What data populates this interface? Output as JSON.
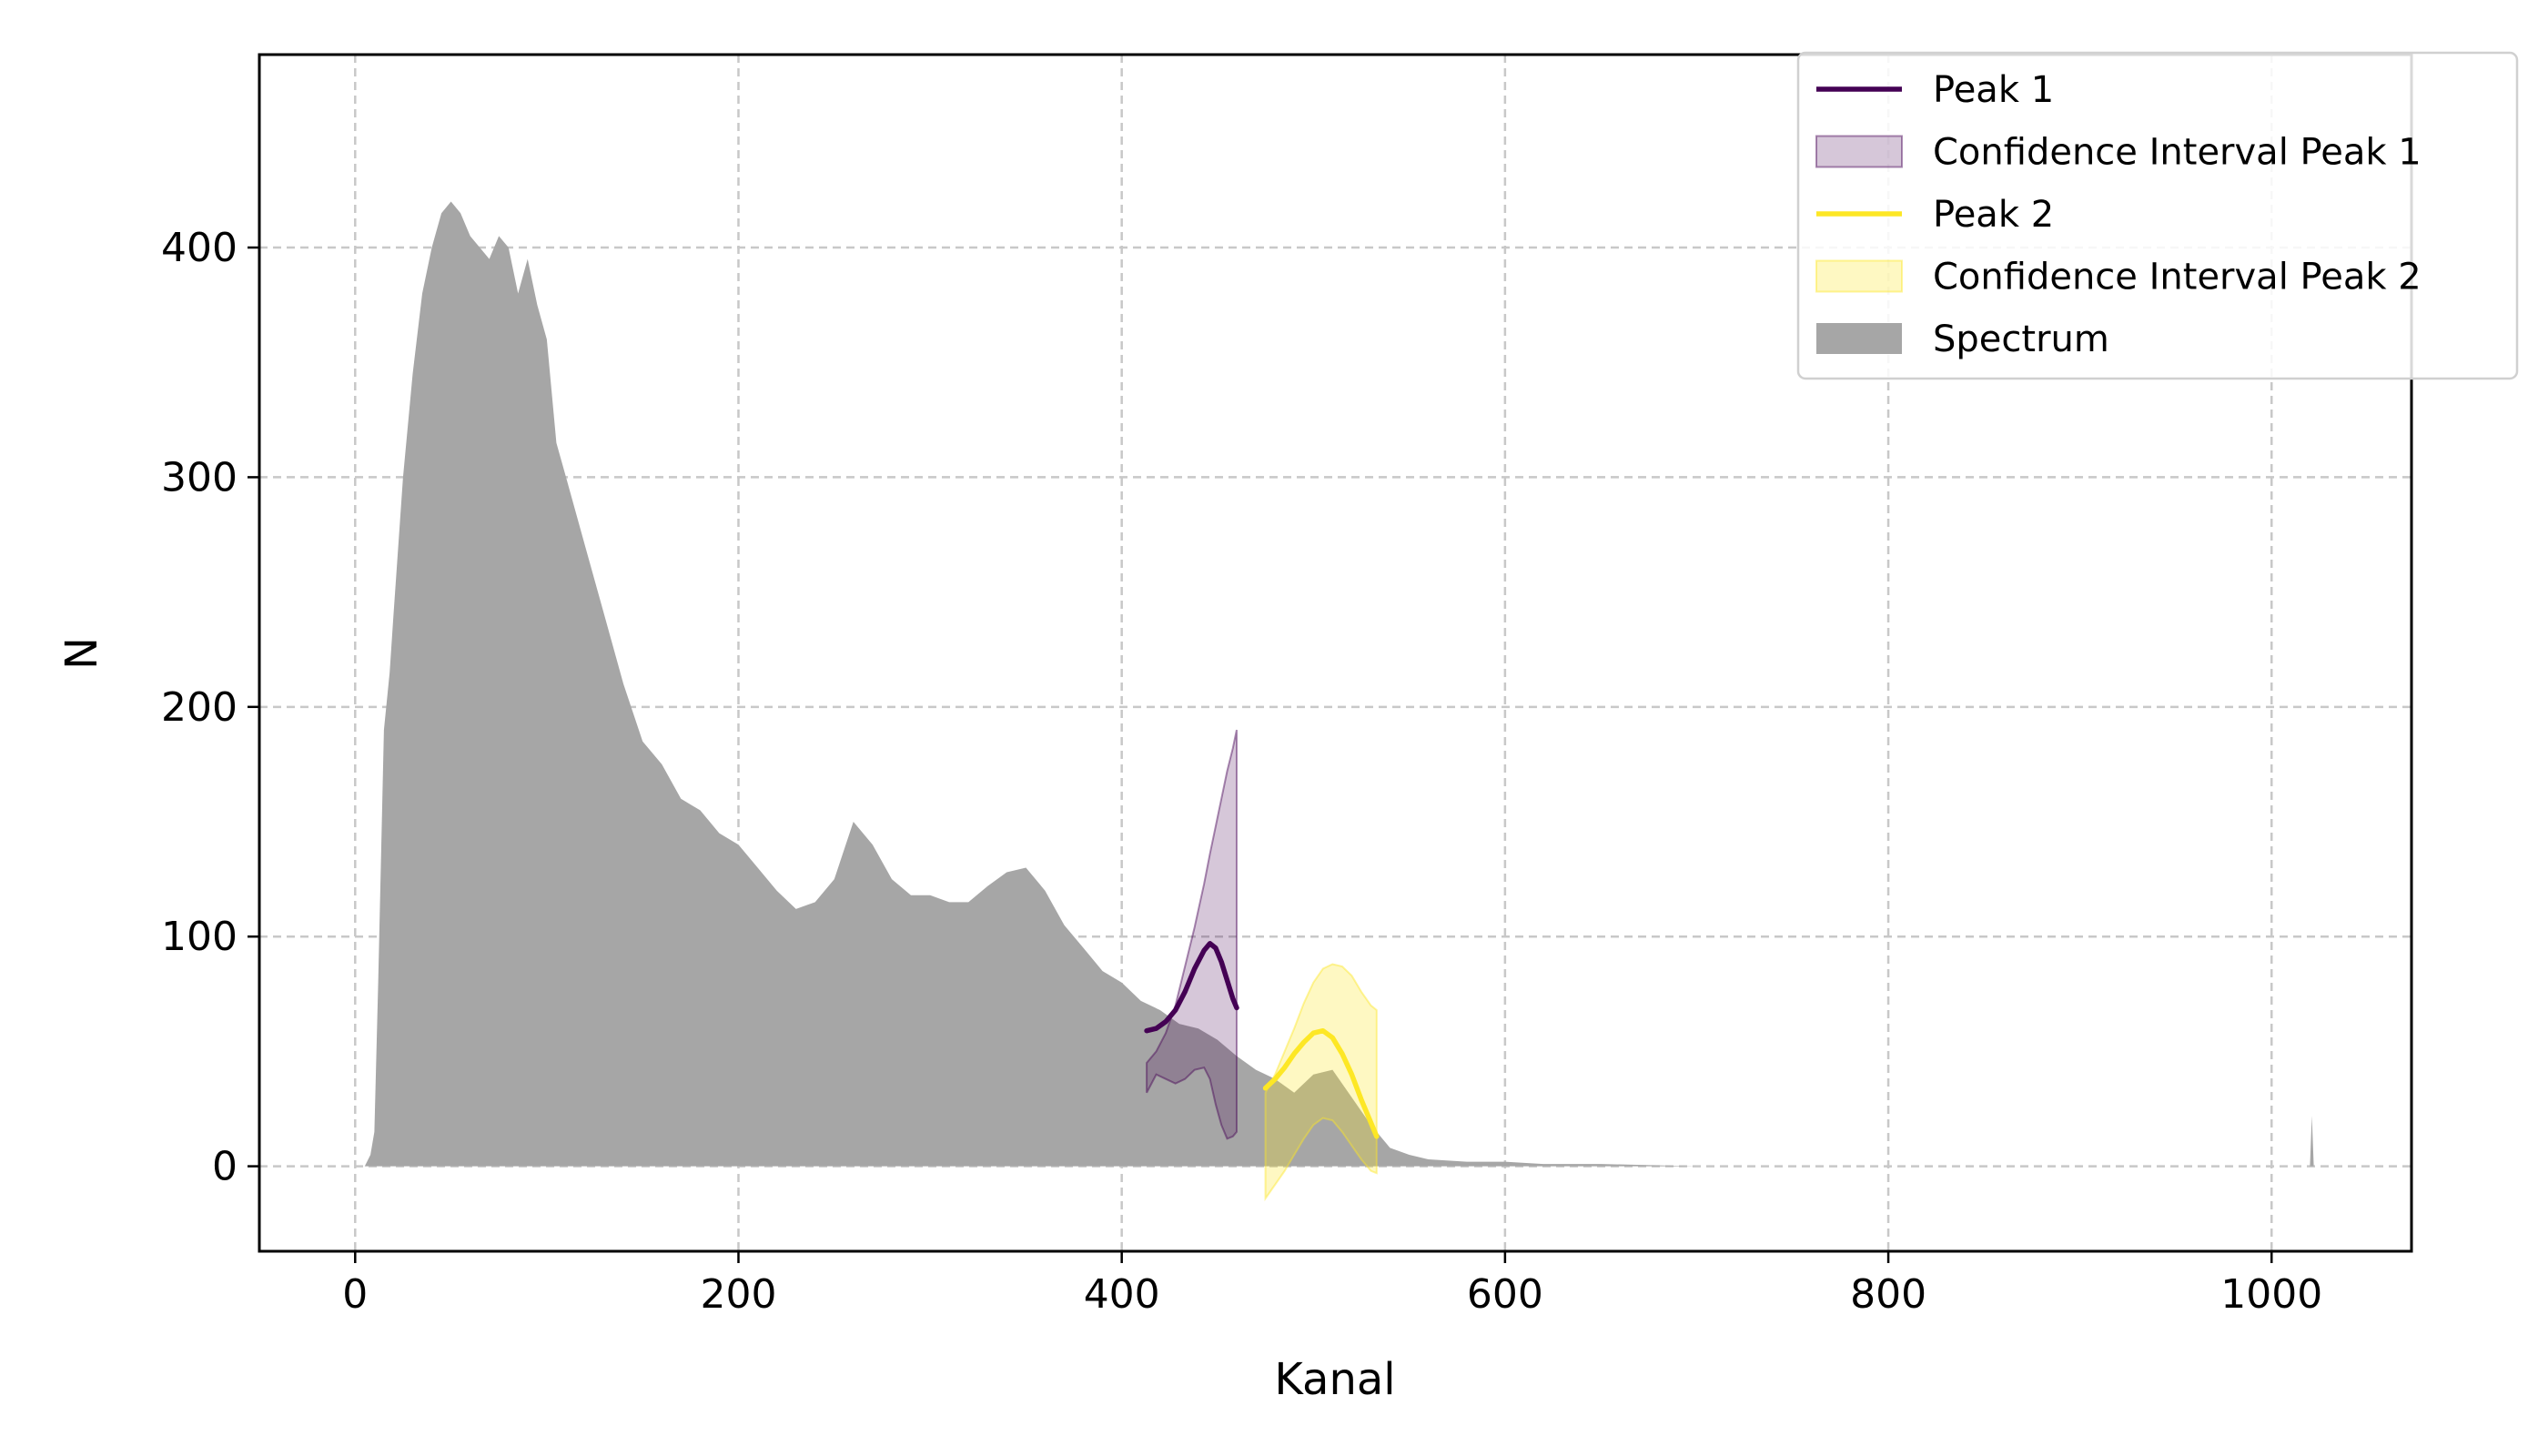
{
  "chart_data": {
    "type": "area",
    "title": "",
    "xlabel": "Kanal",
    "ylabel": "N",
    "xlim": [
      -50,
      1073
    ],
    "ylim": [
      -37,
      484
    ],
    "grid": true,
    "xticks": [
      0,
      200,
      400,
      600,
      800,
      1000
    ],
    "yticks": [
      0,
      100,
      200,
      300,
      400
    ],
    "legend_placement": "upper right",
    "colors": {
      "spectrum": "#a6a6a6",
      "peak1": "#440154",
      "peak2": "#fde725",
      "grid": "#c8c8c8"
    },
    "legend": [
      {
        "label": "Peak 1",
        "kind": "line",
        "color": "#440154"
      },
      {
        "label": "Confidence Interval Peak 1",
        "kind": "patch",
        "color": "#440154"
      },
      {
        "label": "Peak 2",
        "kind": "line",
        "color": "#fde725"
      },
      {
        "label": "Confidence Interval Peak 2",
        "kind": "patch",
        "color": "#fde725"
      },
      {
        "label": "Spectrum",
        "kind": "patch",
        "color": "#a6a6a6"
      }
    ],
    "spectrum": {
      "name": "Spectrum",
      "x": [
        0,
        5,
        8,
        10,
        12,
        15,
        18,
        20,
        25,
        30,
        35,
        40,
        45,
        50,
        55,
        60,
        65,
        70,
        75,
        80,
        85,
        90,
        95,
        100,
        105,
        110,
        120,
        130,
        140,
        150,
        160,
        170,
        180,
        190,
        200,
        210,
        220,
        230,
        240,
        250,
        260,
        270,
        280,
        290,
        300,
        310,
        320,
        330,
        340,
        350,
        360,
        370,
        380,
        390,
        400,
        410,
        420,
        430,
        440,
        450,
        460,
        470,
        480,
        490,
        500,
        510,
        520,
        530,
        540,
        550,
        560,
        580,
        600,
        620,
        650,
        700,
        750,
        800,
        900,
        1000,
        1020,
        1021,
        1022,
        1023
      ],
      "y": [
        0,
        0,
        5,
        15,
        80,
        190,
        215,
        240,
        300,
        345,
        380,
        400,
        415,
        420,
        415,
        405,
        400,
        395,
        405,
        400,
        380,
        395,
        375,
        360,
        315,
        300,
        270,
        240,
        210,
        185,
        175,
        160,
        155,
        145,
        140,
        130,
        120,
        112,
        115,
        125,
        150,
        140,
        125,
        118,
        118,
        115,
        115,
        122,
        128,
        130,
        120,
        105,
        95,
        85,
        80,
        72,
        68,
        62,
        60,
        55,
        48,
        42,
        38,
        32,
        40,
        42,
        30,
        18,
        8,
        5,
        3,
        2,
        2,
        1,
        1,
        0,
        0,
        0,
        0,
        0,
        0,
        22,
        0,
        0
      ]
    },
    "series": [
      {
        "name": "Peak 1",
        "color": "#440154",
        "x": [
          413,
          418,
          423,
          428,
          433,
          438,
          443,
          446,
          449,
          452,
          455,
          458,
          460
        ],
        "y": [
          59,
          60,
          63,
          68,
          76,
          86,
          94,
          97,
          95,
          89,
          81,
          73,
          69
        ],
        "ci_upper": [
          45,
          50,
          58,
          70,
          87,
          104,
          123,
          136,
          148,
          160,
          172,
          182,
          190
        ],
        "ci_lower": [
          32,
          40,
          38,
          36,
          38,
          42,
          43,
          38,
          27,
          18,
          12,
          13,
          15
        ]
      },
      {
        "name": "Peak 2",
        "color": "#fde725",
        "x": [
          475,
          480,
          485,
          490,
          495,
          500,
          505,
          510,
          515,
          520,
          525,
          530,
          533
        ],
        "y": [
          34,
          38,
          43,
          49,
          54,
          58,
          59,
          56,
          49,
          40,
          29,
          19,
          13
        ],
        "ci_upper": [
          32,
          40,
          50,
          60,
          71,
          80,
          86,
          88,
          87,
          83,
          76,
          70,
          68
        ],
        "ci_lower": [
          -14,
          -8,
          -2,
          5,
          12,
          18,
          21,
          20,
          15,
          9,
          3,
          -2,
          -3
        ]
      }
    ]
  }
}
